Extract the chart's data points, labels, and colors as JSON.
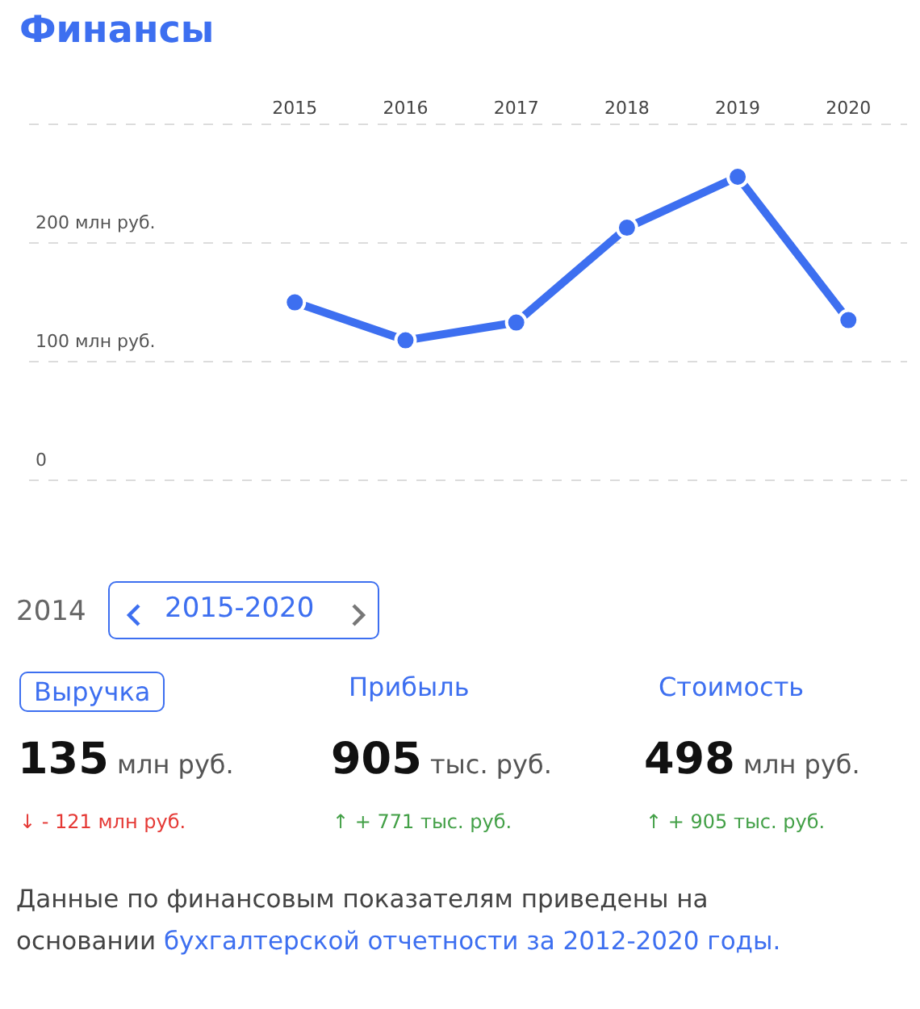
{
  "chart_data": [
    {
      "type": "line",
      "title": "Финансы",
      "x": [
        2015,
        2016,
        2017,
        2018,
        2019,
        2020
      ],
      "series": [
        {
          "color": "#3d6ff0",
          "values": [
            150,
            118,
            133,
            213,
            256,
            135
          ]
        }
      ],
      "xlim": [
        2012.6,
        2020.53
      ],
      "xticks": [
        2015,
        2016,
        2017,
        2018,
        2019,
        2020
      ],
      "ylim": [
        0,
        300
      ],
      "yticks": [
        0,
        {
          "value": 100,
          "label": "100 млн руб."
        },
        {
          "value": 200,
          "label": "200 млн руб."
        },
        {
          "value": 300,
          "label": null
        }
      ],
      "grid": "y",
      "legend": false,
      "marker": "circle",
      "line_style": "solid"
    },
    {
      "type": "other",
      "annotations": [
        "2014",
        "2015-2020",
        "Выручка",
        "Прибыль",
        "Стоимость",
        "135 млн руб.",
        "905 тыс. руб.",
        "498 млн руб.",
        "↓ - 121 млн руб.",
        "↑ + 771 тыс. руб.",
        "↑ + 905 тыс. руб.",
        "Данные по финансовым показателям приведены на основании ",
        "бухгалтерской отчетности за 2012-2020 годы."
      ]
    }
  ]
}
